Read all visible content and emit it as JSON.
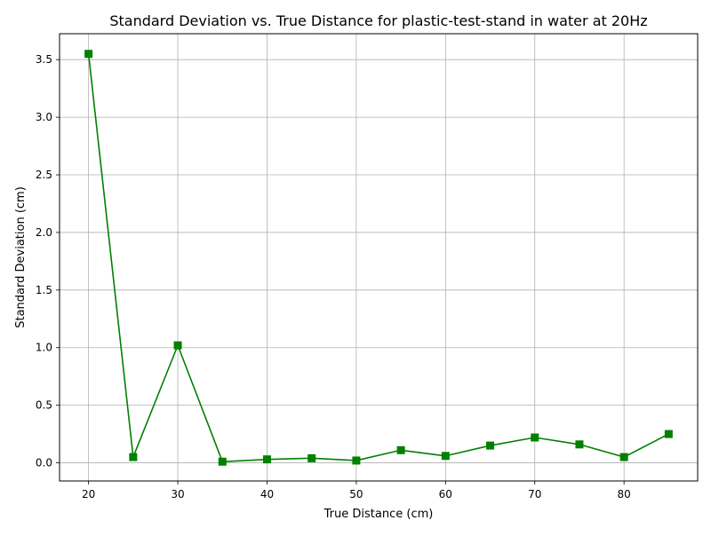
{
  "chart_data": {
    "type": "line",
    "title": "Standard Deviation vs. True Distance for plastic-test-stand in water at 20Hz",
    "xlabel": "True Distance (cm)",
    "ylabel": "Standard Deviation (cm)",
    "xlim": [
      16.75,
      88.25
    ],
    "ylim": [
      -0.1575,
      3.725
    ],
    "x_ticks": [
      20,
      30,
      40,
      50,
      60,
      70,
      80
    ],
    "y_ticks": [
      0.0,
      0.5,
      1.0,
      1.5,
      2.0,
      2.5,
      3.0,
      3.5
    ],
    "x_tick_labels": [
      "20",
      "30",
      "40",
      "50",
      "60",
      "70",
      "80"
    ],
    "y_tick_labels": [
      "0.0",
      "0.5",
      "1.0",
      "1.5",
      "2.0",
      "2.5",
      "3.0",
      "3.5"
    ],
    "grid": true,
    "series": [
      {
        "color": "#008000",
        "marker": "square",
        "x": [
          20,
          25,
          30,
          35,
          40,
          45,
          50,
          55,
          60,
          65,
          70,
          75,
          80,
          85
        ],
        "y": [
          3.55,
          0.05,
          1.02,
          0.01,
          0.03,
          0.04,
          0.02,
          0.11,
          0.06,
          0.15,
          0.22,
          0.16,
          0.05,
          0.25
        ]
      }
    ]
  }
}
